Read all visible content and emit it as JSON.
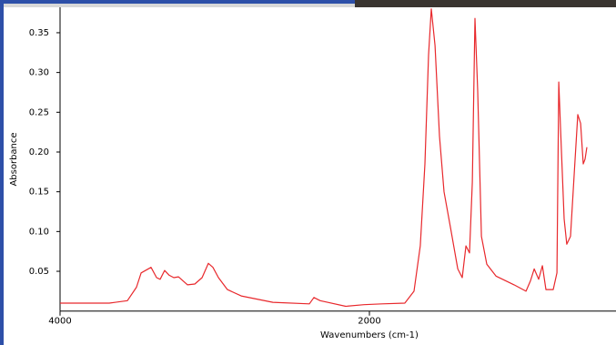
{
  "chart_data": {
    "type": "line",
    "xlabel": "Wavenumbers (cm-1)",
    "ylabel": "Absorbance",
    "color": "#e8282c",
    "xlim": [
      4000,
      406
    ],
    "xticks": [
      4000,
      2000
    ],
    "ylim": [
      0,
      0.382
    ],
    "yticks": [
      0.05,
      {
        "value": 0.1,
        "label": "0.10"
      },
      0.15,
      {
        "value": 0.2,
        "label": "0.20"
      },
      0.25,
      {
        "value": 0.3,
        "label": "0.30"
      },
      0.35
    ],
    "x": [
      4000,
      3682,
      3565,
      3506,
      3476,
      3412,
      3376,
      3353,
      3324,
      3294,
      3265,
      3235,
      3176,
      3129,
      3082,
      3041,
      3012,
      2976,
      2918,
      2829,
      2624,
      2388,
      2359,
      2318,
      2271,
      2153,
      2035,
      1918,
      1771,
      1712,
      1671,
      1641,
      1618,
      1600,
      1576,
      1547,
      1518,
      1476,
      1429,
      1400,
      1376,
      1353,
      1335,
      1318,
      1300,
      1276,
      1241,
      1182,
      1065,
      988,
      959,
      935,
      906,
      882,
      859,
      812,
      788,
      776,
      765,
      741,
      724,
      700,
      676,
      653,
      635,
      618,
      606,
      594
    ],
    "values": [
      0.01,
      0.01,
      0.013,
      0.03,
      0.048,
      0.055,
      0.042,
      0.04,
      0.051,
      0.045,
      0.042,
      0.043,
      0.033,
      0.034,
      0.042,
      0.06,
      0.055,
      0.042,
      0.027,
      0.019,
      0.011,
      0.009,
      0.017,
      0.013,
      0.011,
      0.006,
      0.008,
      0.009,
      0.01,
      0.025,
      0.082,
      0.185,
      0.322,
      0.38,
      0.334,
      0.22,
      0.15,
      0.105,
      0.053,
      0.042,
      0.082,
      0.073,
      0.162,
      0.368,
      0.277,
      0.094,
      0.059,
      0.044,
      0.033,
      0.025,
      0.038,
      0.053,
      0.04,
      0.057,
      0.027,
      0.027,
      0.048,
      0.288,
      0.231,
      0.116,
      0.084,
      0.094,
      0.173,
      0.247,
      0.236,
      0.185,
      0.191,
      0.206
    ]
  }
}
